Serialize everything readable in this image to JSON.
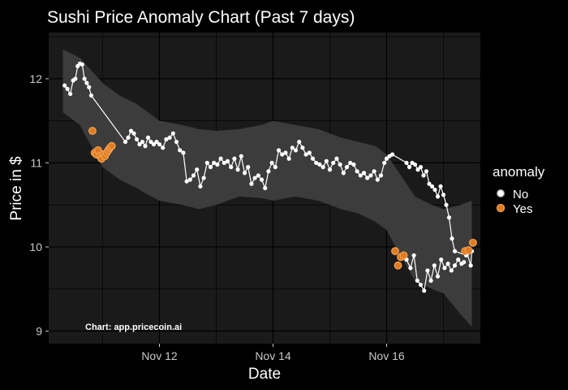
{
  "chart_data": {
    "type": "scatter",
    "title": "Sushi Price Anomaly Chart (Past 7 days)",
    "xlabel": "Date",
    "ylabel": "Price in $",
    "caption": "Chart: app.pricecoin.ai",
    "x_unit": "days since Nov 10 00:00",
    "xlim": [
      0.05,
      7.65
    ],
    "ylim": [
      8.85,
      12.55
    ],
    "x_ticks": [
      {
        "value": 2,
        "label": "Nov 12"
      },
      {
        "value": 4,
        "label": "Nov 14"
      },
      {
        "value": 6,
        "label": "Nov 16"
      }
    ],
    "y_ticks": [
      {
        "value": 9,
        "label": "9"
      },
      {
        "value": 10,
        "label": "10"
      },
      {
        "value": 11,
        "label": "11"
      },
      {
        "value": 12,
        "label": "12"
      }
    ],
    "legend": {
      "title": "anomaly",
      "position": "right",
      "entries": [
        {
          "label": "No",
          "color": "#ffffff"
        },
        {
          "label": "Yes",
          "color": "#e07a20"
        }
      ]
    },
    "colors": {
      "background": "#000000",
      "panel": "#1a1a1a",
      "grid": "#000000",
      "band": "#3c3c3c",
      "normal": "#ffffff",
      "anomaly_fill": "#e07a20",
      "anomaly_ring": "#f0a050"
    },
    "band": {
      "x": [
        0.3,
        0.6,
        0.8,
        1.0,
        1.3,
        1.6,
        1.8,
        2.0,
        2.4,
        2.7,
        3.0,
        3.4,
        3.8,
        4.0,
        4.4,
        4.8,
        5.2,
        5.5,
        5.8,
        6.0,
        6.2,
        6.5,
        6.8,
        7.0,
        7.3,
        7.5
      ],
      "upper": [
        12.35,
        12.25,
        12.1,
        11.95,
        11.8,
        11.7,
        11.6,
        11.5,
        11.45,
        11.4,
        11.38,
        11.4,
        11.45,
        11.5,
        11.45,
        11.4,
        11.3,
        11.25,
        11.2,
        11.1,
        10.9,
        10.6,
        10.5,
        10.45,
        10.5,
        10.55
      ],
      "lower": [
        11.6,
        11.45,
        11.2,
        10.95,
        10.8,
        10.7,
        10.62,
        10.55,
        10.5,
        10.45,
        10.5,
        10.6,
        10.58,
        10.55,
        10.6,
        10.55,
        10.45,
        10.4,
        10.3,
        10.2,
        9.95,
        9.6,
        9.5,
        9.45,
        9.2,
        9.05
      ]
    },
    "series": [
      {
        "name": "No",
        "x": [
          0.33,
          0.38,
          0.43,
          0.48,
          0.52,
          0.56,
          0.6,
          0.64,
          0.68,
          0.72,
          0.76,
          0.8,
          1.4,
          1.45,
          1.5,
          1.55,
          1.6,
          1.65,
          1.7,
          1.75,
          1.8,
          1.85,
          1.9,
          1.95,
          2.0,
          2.06,
          2.12,
          2.18,
          2.24,
          2.3,
          2.36,
          2.42,
          2.48,
          2.54,
          2.6,
          2.66,
          2.72,
          2.78,
          2.84,
          2.9,
          2.96,
          3.02,
          3.08,
          3.14,
          3.2,
          3.26,
          3.32,
          3.38,
          3.44,
          3.5,
          3.56,
          3.62,
          3.68,
          3.74,
          3.8,
          3.86,
          3.92,
          3.98,
          4.04,
          4.1,
          4.16,
          4.22,
          4.28,
          4.34,
          4.4,
          4.46,
          4.52,
          4.58,
          4.64,
          4.7,
          4.76,
          4.82,
          4.88,
          4.94,
          5.0,
          5.06,
          5.12,
          5.18,
          5.24,
          5.3,
          5.36,
          5.42,
          5.48,
          5.54,
          5.6,
          5.66,
          5.72,
          5.78,
          5.84,
          5.9,
          5.96,
          6.0,
          6.05,
          6.1,
          6.35,
          6.4,
          6.45,
          6.5,
          6.55,
          6.6,
          6.65,
          6.7,
          6.75,
          6.8,
          6.85,
          6.9,
          6.95,
          7.0,
          7.05,
          7.1,
          7.15,
          7.2,
          7.4
        ],
        "y": [
          11.92,
          11.88,
          11.82,
          11.98,
          12.0,
          12.15,
          12.18,
          12.17,
          12.0,
          11.95,
          11.9,
          11.8,
          11.25,
          11.3,
          11.38,
          11.35,
          11.28,
          11.22,
          11.25,
          11.2,
          11.3,
          11.25,
          11.22,
          11.25,
          11.22,
          11.18,
          11.28,
          11.3,
          11.35,
          11.25,
          11.15,
          11.12,
          10.78,
          10.8,
          10.85,
          10.92,
          10.72,
          10.82,
          11.0,
          10.95,
          11.0,
          10.98,
          11.05,
          11.0,
          11.02,
          10.95,
          11.05,
          10.92,
          11.08,
          10.88,
          10.95,
          10.75,
          10.82,
          10.85,
          10.8,
          10.7,
          10.9,
          11.0,
          10.95,
          11.15,
          11.1,
          11.12,
          11.05,
          11.18,
          11.15,
          11.25,
          11.18,
          11.1,
          11.12,
          11.05,
          11.0,
          10.98,
          10.95,
          11.02,
          10.92,
          11.0,
          11.05,
          10.98,
          10.88,
          10.95,
          11.0,
          10.98,
          10.9,
          10.85,
          10.88,
          10.82,
          10.85,
          10.9,
          10.8,
          10.85,
          11.0,
          11.05,
          11.08,
          11.1,
          11.0,
          10.95,
          11.0,
          10.98,
          10.92,
          10.95,
          10.85,
          10.9,
          10.75,
          10.72,
          10.68,
          10.6,
          10.72,
          10.62,
          10.5,
          10.35,
          10.1,
          9.95,
          9.9
        ]
      },
      {
        "name": "No",
        "x": [
          6.35,
          6.42,
          6.48,
          6.54,
          6.6,
          6.66,
          6.72,
          6.78,
          6.84,
          6.9,
          6.96,
          7.02,
          7.08,
          7.14,
          7.2,
          7.26,
          7.32,
          7.36
        ],
        "y": [
          9.85,
          9.75,
          9.9,
          9.6,
          9.55,
          9.48,
          9.72,
          9.6,
          9.78,
          9.65,
          9.85,
          9.75,
          9.8,
          9.72,
          9.78,
          9.85,
          9.8,
          9.82
        ]
      },
      {
        "name": "No",
        "x": [
          7.42,
          7.48,
          7.5
        ],
        "y": [
          9.92,
          9.78,
          9.95
        ]
      },
      {
        "name": "Yes",
        "x": [
          0.82,
          0.86,
          0.89,
          0.92,
          0.95,
          0.98,
          1.01,
          1.04,
          1.07,
          1.1,
          1.13,
          1.16,
          6.15,
          6.2,
          6.25,
          6.3,
          7.38,
          7.44,
          7.52
        ],
        "y": [
          11.38,
          11.12,
          11.1,
          11.15,
          11.08,
          11.05,
          11.1,
          11.08,
          11.12,
          11.15,
          11.18,
          11.2,
          9.95,
          9.78,
          9.88,
          9.9,
          9.95,
          9.96,
          10.05
        ]
      }
    ]
  }
}
